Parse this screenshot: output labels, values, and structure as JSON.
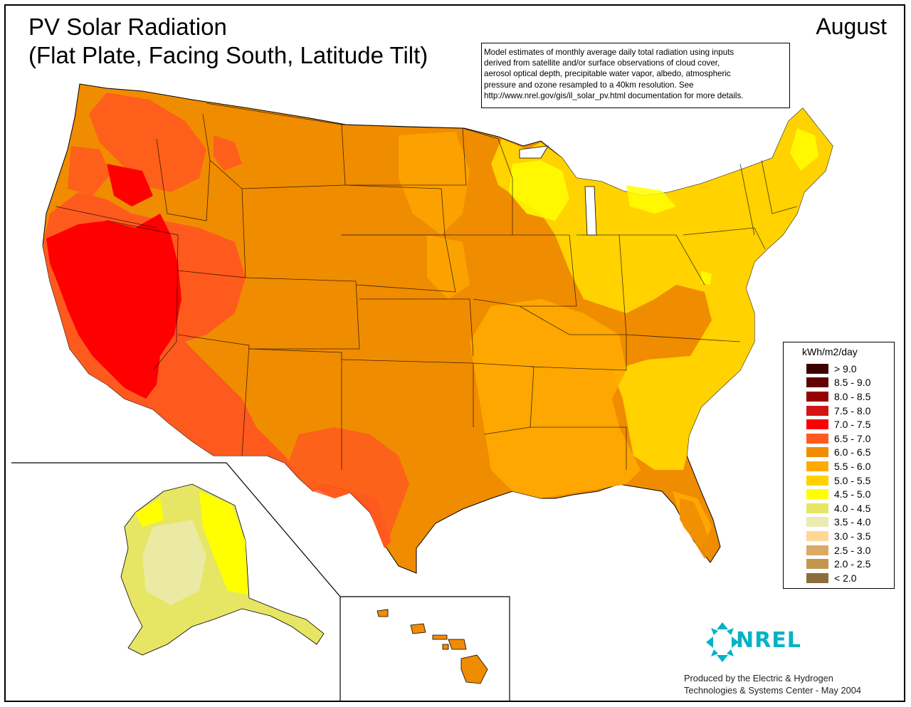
{
  "title_line1": "PV Solar Radiation",
  "title_line2": "(Flat Plate, Facing South, Latitude Tilt)",
  "month": "August",
  "note_lines": [
    "Model estimates of monthly average daily total radiation using inputs",
    "derived from satellite and/or surface observations of cloud cover,",
    "aerosol optical depth, precipitable water vapor, albedo, atmospheric",
    "pressure and ozone resampled to a 40km resolution.  See",
    "http://www.nrel.gov/gis/il_solar_pv.html documentation for more details."
  ],
  "legend": {
    "title": "kWh/m2/day",
    "items": [
      {
        "label": "> 9.0",
        "color": "#3c0000"
      },
      {
        "label": "8.5 - 9.0",
        "color": "#640000"
      },
      {
        "label": "8.0 - 8.5",
        "color": "#960000"
      },
      {
        "label": "7.5 - 8.0",
        "color": "#d21414"
      },
      {
        "label": "7.0 - 7.5",
        "color": "#ff0000"
      },
      {
        "label": "6.5 - 7.0",
        "color": "#ff5a1e"
      },
      {
        "label": "6.0 - 6.5",
        "color": "#f08c00"
      },
      {
        "label": "5.5 - 6.0",
        "color": "#ffaa00"
      },
      {
        "label": "5.0 - 5.5",
        "color": "#ffd200"
      },
      {
        "label": "4.5 - 5.0",
        "color": "#ffff00"
      },
      {
        "label": "4.0 - 4.5",
        "color": "#e6e664"
      },
      {
        "label": "3.5 - 4.0",
        "color": "#ebebb4"
      },
      {
        "label": "3.0 - 3.5",
        "color": "#ffd796"
      },
      {
        "label": "2.5 - 3.0",
        "color": "#dcaa64"
      },
      {
        "label": "2.0 - 2.5",
        "color": "#c39650"
      },
      {
        "label": "< 2.0",
        "color": "#8c6e3c"
      }
    ]
  },
  "logo": {
    "text": "NREL",
    "color": "#00b3c7"
  },
  "credit_lines": [
    "Produced by the Electric & Hydrogen",
    "Technologies & Systems Center - May 2004"
  ]
}
